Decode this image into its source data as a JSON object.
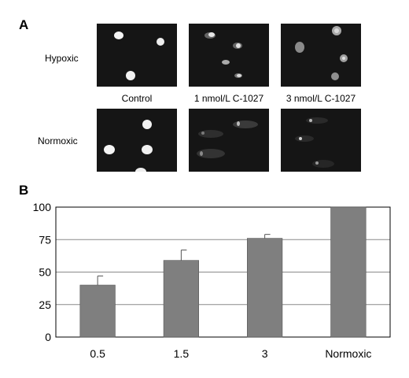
{
  "panel_a": {
    "letter": "A",
    "rows": [
      "Hypoxic",
      "Normoxic"
    ],
    "conditions": [
      "Control",
      "1 nmol/L C-1027",
      "3 nmol/L C-1027"
    ]
  },
  "panel_b": {
    "letter": "B"
  },
  "chart_data": {
    "type": "bar",
    "categories": [
      "0.5",
      "1.5",
      "3",
      "Normoxic"
    ],
    "values": [
      40,
      59,
      76,
      100
    ],
    "errors": [
      7,
      8,
      3,
      0
    ],
    "ylim": [
      0,
      100
    ],
    "yticks": [
      0,
      25,
      50,
      75,
      100
    ],
    "grid": true,
    "title": "",
    "xlabel": "",
    "ylabel": "",
    "bar_color": "#7f7f7f"
  }
}
